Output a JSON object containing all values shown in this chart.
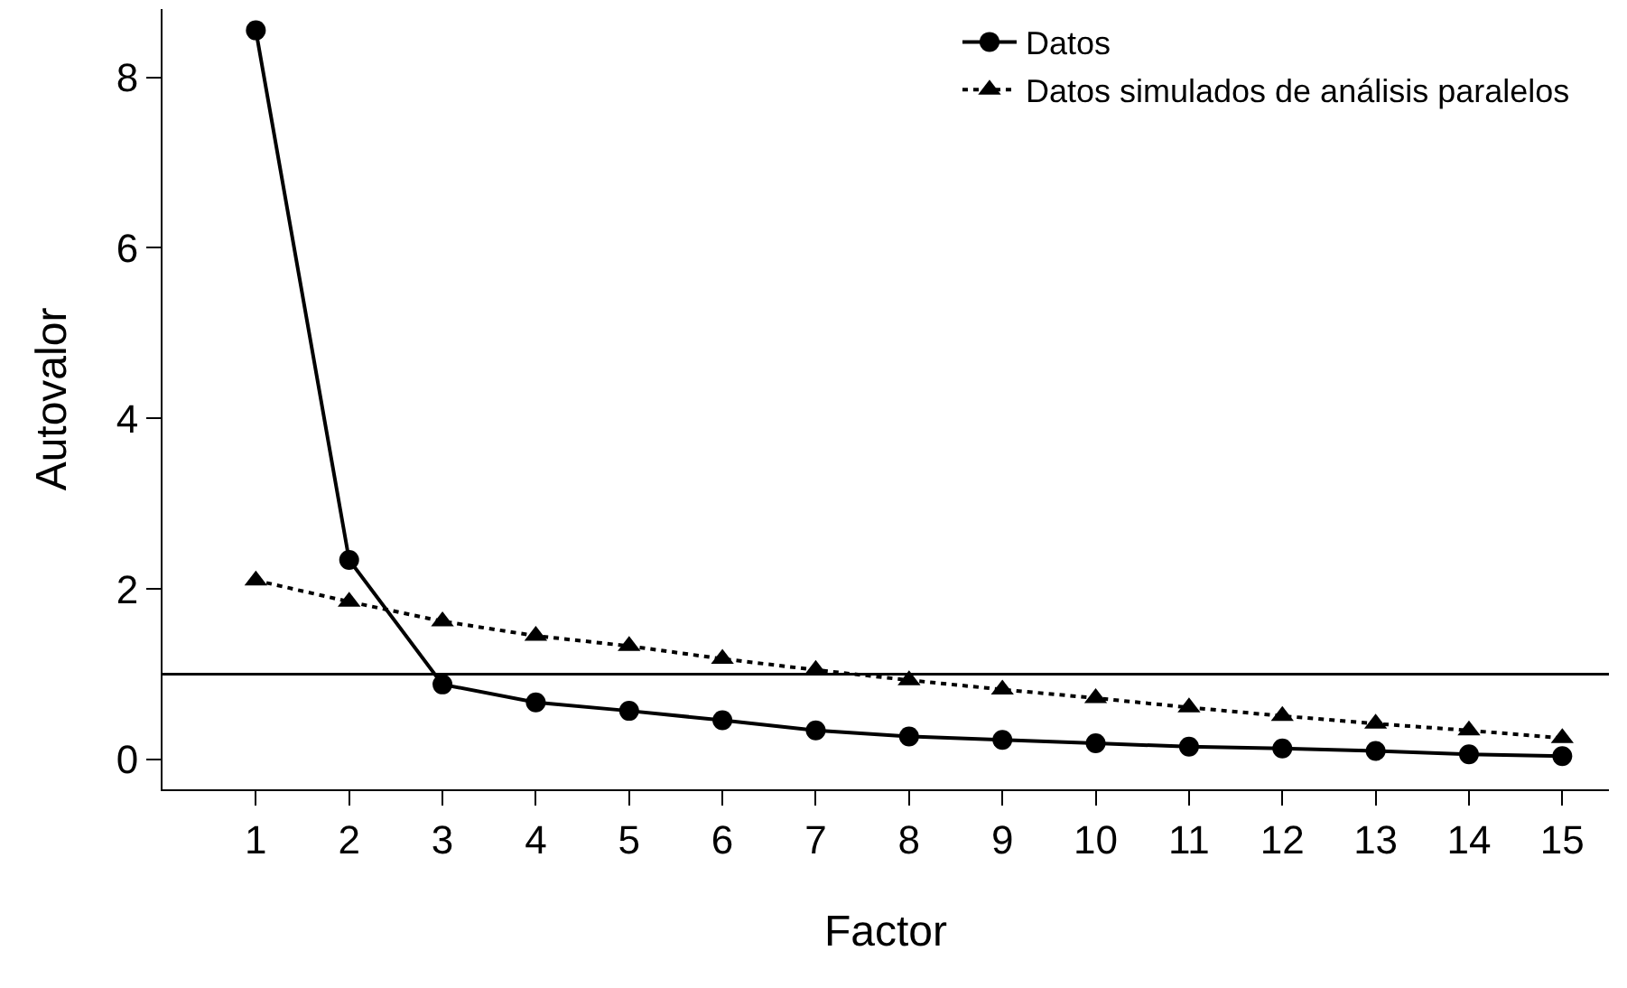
{
  "chart_data": {
    "type": "line",
    "xlabel": "Factor",
    "ylabel": "Autovalor",
    "x": [
      1,
      2,
      3,
      4,
      5,
      6,
      7,
      8,
      9,
      10,
      11,
      12,
      13,
      14,
      15
    ],
    "series": [
      {
        "name": "Datos",
        "color": "#000000",
        "marker": "circle",
        "line_style": "solid",
        "values": [
          8.55,
          2.34,
          0.88,
          0.67,
          0.57,
          0.46,
          0.34,
          0.27,
          0.23,
          0.19,
          0.15,
          0.13,
          0.1,
          0.06,
          0.04
        ]
      },
      {
        "name": "Datos simulados de análisis paralelos",
        "color": "#000000",
        "marker": "triangle",
        "line_style": "dotted",
        "values": [
          2.1,
          1.85,
          1.62,
          1.45,
          1.33,
          1.18,
          1.05,
          0.93,
          0.82,
          0.72,
          0.61,
          0.51,
          0.42,
          0.34,
          0.25
        ]
      }
    ],
    "xlim": [
      0,
      15.5
    ],
    "xticks": [
      1,
      2,
      3,
      4,
      5,
      6,
      7,
      8,
      9,
      10,
      11,
      12,
      13,
      14,
      15
    ],
    "ylim": [
      -0.35,
      8.8
    ],
    "yticks": [
      0,
      2,
      4,
      6,
      8
    ],
    "ref_lines": [
      {
        "axis": "y",
        "value": 1,
        "color": "#000000",
        "line_style": "solid"
      }
    ],
    "legend": "top right"
  }
}
